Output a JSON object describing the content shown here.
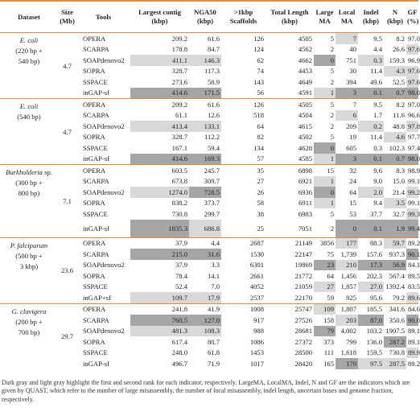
{
  "header": {
    "columns": [
      "Dataset",
      "Size (Mb)",
      "Tools",
      "Largest contig (kbp)",
      "NGA50 (kbp)",
      ">1kbp Scaffolds",
      "Total Length (kbp)",
      "Large MA",
      "Local MA",
      "Indel (kbp)",
      "N (kbp)",
      "GF (%)"
    ]
  },
  "groups": [
    {
      "dataset": {
        "name": "E. coli",
        "detail": [
          "(220 bp +",
          "540 bp)"
        ]
      },
      "size": "4.7",
      "rows": [
        {
          "tool": "OPERA",
          "values": [
            "209.2",
            "61.6",
            "126",
            "4505",
            "5",
            "7",
            "9.5",
            "8.2",
            "97.0"
          ]
        },
        {
          "tool": "SCARPA",
          "values": [
            "178.8",
            "84.7",
            "124",
            "4562",
            "2",
            "40",
            "4.4",
            "26.6",
            "97.6"
          ]
        },
        {
          "tool": "SOAPdenovo2",
          "values": [
            "411.1",
            "146.3",
            "62",
            "4662",
            "0",
            "751",
            "0.3",
            "159.3",
            "96.9"
          ]
        },
        {
          "tool": "SOPRA",
          "values": [
            "328.7",
            "117.3",
            "74",
            "4453",
            "5",
            "30",
            "11.4",
            "4.3",
            "97.6"
          ]
        },
        {
          "tool": "SSPACE",
          "values": [
            "273.6",
            "58.9",
            "143",
            "4649",
            "2",
            "394",
            "49.6",
            "52.5",
            "97.6"
          ]
        },
        {
          "tool": "inGAP-sf",
          "values": [
            "414.6",
            "171.5",
            "56",
            "4591",
            "1",
            "3",
            "0.1",
            "0.7",
            "98.0"
          ]
        }
      ]
    },
    {
      "dataset": {
        "name": "E. coli",
        "detail": [
          "(540 bp)"
        ]
      },
      "size": "4.7",
      "rows": [
        {
          "tool": "OPERA",
          "values": [
            "209.2",
            "61.6",
            "126",
            "4505",
            "5",
            "7",
            "9.5",
            "8.2",
            "97.0"
          ]
        },
        {
          "tool": "SCARPA",
          "values": [
            "61.1",
            "12.6",
            "518",
            "4504",
            "2",
            "6",
            "1.7",
            "11.6",
            "96.6"
          ]
        },
        {
          "tool": "SOAPdenovo2",
          "values": [
            "413.4",
            "133.1",
            "64",
            "4615",
            "2",
            "209",
            "0.2",
            "48.8",
            "97.8"
          ]
        },
        {
          "tool": "SOPRA",
          "values": [
            "328.7",
            "112.2",
            "82",
            "4502",
            "5",
            "19",
            "11.4",
            "4.6",
            "97.7"
          ]
        },
        {
          "tool": "SSPACE",
          "values": [
            "167.1",
            "59.4",
            "134",
            "4628",
            "0",
            "605",
            "0.3",
            "102.3",
            "97.4"
          ]
        },
        {
          "tool": "inGAP-sf",
          "values": [
            "414.6",
            "169.3",
            "57",
            "4585",
            "1",
            "3",
            "0.1",
            "0.7",
            "98.0"
          ]
        }
      ]
    },
    {
      "dataset": {
        "name": "Burkholderia",
        "suffix": "sp.",
        "detail": [
          "(300 bp +",
          "800 bp)"
        ]
      },
      "size": "7.1",
      "rows": [
        {
          "tool": "OPERA",
          "values": [
            "603.5",
            "245.7",
            "35",
            "6898",
            "15",
            "32",
            "9.6",
            "8.3",
            "98.9"
          ]
        },
        {
          "tool": "SCARPA",
          "values": [
            "673.8",
            "309.7",
            "27",
            "6921",
            "1",
            "24",
            "9.0",
            "15.0",
            "99.1"
          ]
        },
        {
          "tool": "SOAPdenovo2",
          "values": [
            "1274.0",
            "728.5",
            "26",
            "6936",
            "0",
            "64",
            "2.0",
            "21.4",
            "99.2"
          ]
        },
        {
          "tool": "SOPRA",
          "values": [
            "838.2",
            "373.7",
            "58",
            "6911",
            "1",
            "15",
            "9.4",
            "3.5",
            "99.1"
          ]
        },
        {
          "tool": "SSPACE",
          "values": [
            "730.8",
            "299.7",
            "38",
            "6983",
            "5",
            "53",
            "37.7",
            "32.7",
            "99.3"
          ]
        },
        {
          "tool": "inGAP-sf",
          "values": [
            "1835.3",
            "686.8",
            "25",
            "7051",
            "2",
            "0",
            "0.1",
            "1.9",
            "99.4"
          ]
        }
      ]
    },
    {
      "dataset": {
        "name": "P. falciparum",
        "detail": [
          "(500 bp +",
          "3 kbp)"
        ]
      },
      "size": "23.6",
      "rows": [
        {
          "tool": "OPERA",
          "values": [
            "37.9",
            "4.4",
            "2687",
            "21149",
            "3856",
            "177",
            "88.3",
            "59.7",
            "89.2"
          ]
        },
        {
          "tool": "SCARPA",
          "values": [
            "215.0",
            "31.6",
            "1530",
            "22147",
            "75",
            "1,739",
            "157.6",
            "937.3",
            "90.1"
          ]
        },
        {
          "tool": "SOAPdenovo2",
          "values": [
            "37.9",
            "3.3",
            "6301",
            "19869",
            "23",
            "210",
            "17.3",
            "56.9",
            "84.1"
          ]
        },
        {
          "tool": "SOPRA",
          "values": [
            "78.4",
            "14.1",
            "2661",
            "21772",
            "64",
            "1,456",
            "202.3",
            "567.4",
            "89.5"
          ]
        },
        {
          "tool": "SSPACE",
          "values": [
            "52.4",
            "7.0",
            "4052",
            "21059",
            "27",
            "1,857",
            "27.0",
            "1392.4",
            "83.5"
          ]
        },
        {
          "tool": "inGAP+sf",
          "values": [
            "109.7",
            "17.9",
            "2537",
            "22170",
            "59",
            "925",
            "95.6",
            "79.2",
            "89.6"
          ]
        }
      ]
    },
    {
      "dataset": {
        "name": "G. clavigera",
        "detail": [
          "(200 bp +",
          "700 bp)"
        ]
      },
      "size": "29.7",
      "rows": [
        {
          "tool": "OPERA",
          "values": [
            "241.8",
            "41.9",
            "1008",
            "25747",
            "109",
            "1,807",
            "185.5",
            "341.6",
            "84.6"
          ]
        },
        {
          "tool": "SCARPA",
          "values": [
            "760.5",
            "127.0",
            "917",
            "27526",
            "158",
            "203",
            "87.0",
            "350.6",
            "90.0"
          ]
        },
        {
          "tool": "SOAPdenovo2",
          "values": [
            "481.3",
            "108.3",
            "988",
            "28681",
            "79",
            "4,002",
            "103.2",
            "1907.5",
            "89.1"
          ]
        },
        {
          "tool": "SOPRA",
          "values": [
            "617.4",
            "80.7",
            "1086",
            "27372",
            "373",
            "799",
            "136.0",
            "287.2",
            "89.1"
          ]
        },
        {
          "tool": "SSPACE",
          "values": [
            "248.0",
            "61.8",
            "1453",
            "28500",
            "111",
            "1,618",
            "159.5",
            "730.8",
            "89.9"
          ]
        },
        {
          "tool": "inGAP-sf",
          "values": [
            "496.7",
            "71.9",
            "1017",
            "28420",
            "165",
            "179",
            "97.5",
            "287.5",
            "89.2"
          ]
        }
      ]
    }
  ],
  "footnote": "Dark gray and light gray highlight the first and second rank for each indicator, respectively. LargeMA, LocalMA, Indel, N and GF are the indicators which are given by QUAST, which refer to the number of large misassembly, the number of local misassembly, indel length, uncertain bases and genome fraction, respectively."
}
